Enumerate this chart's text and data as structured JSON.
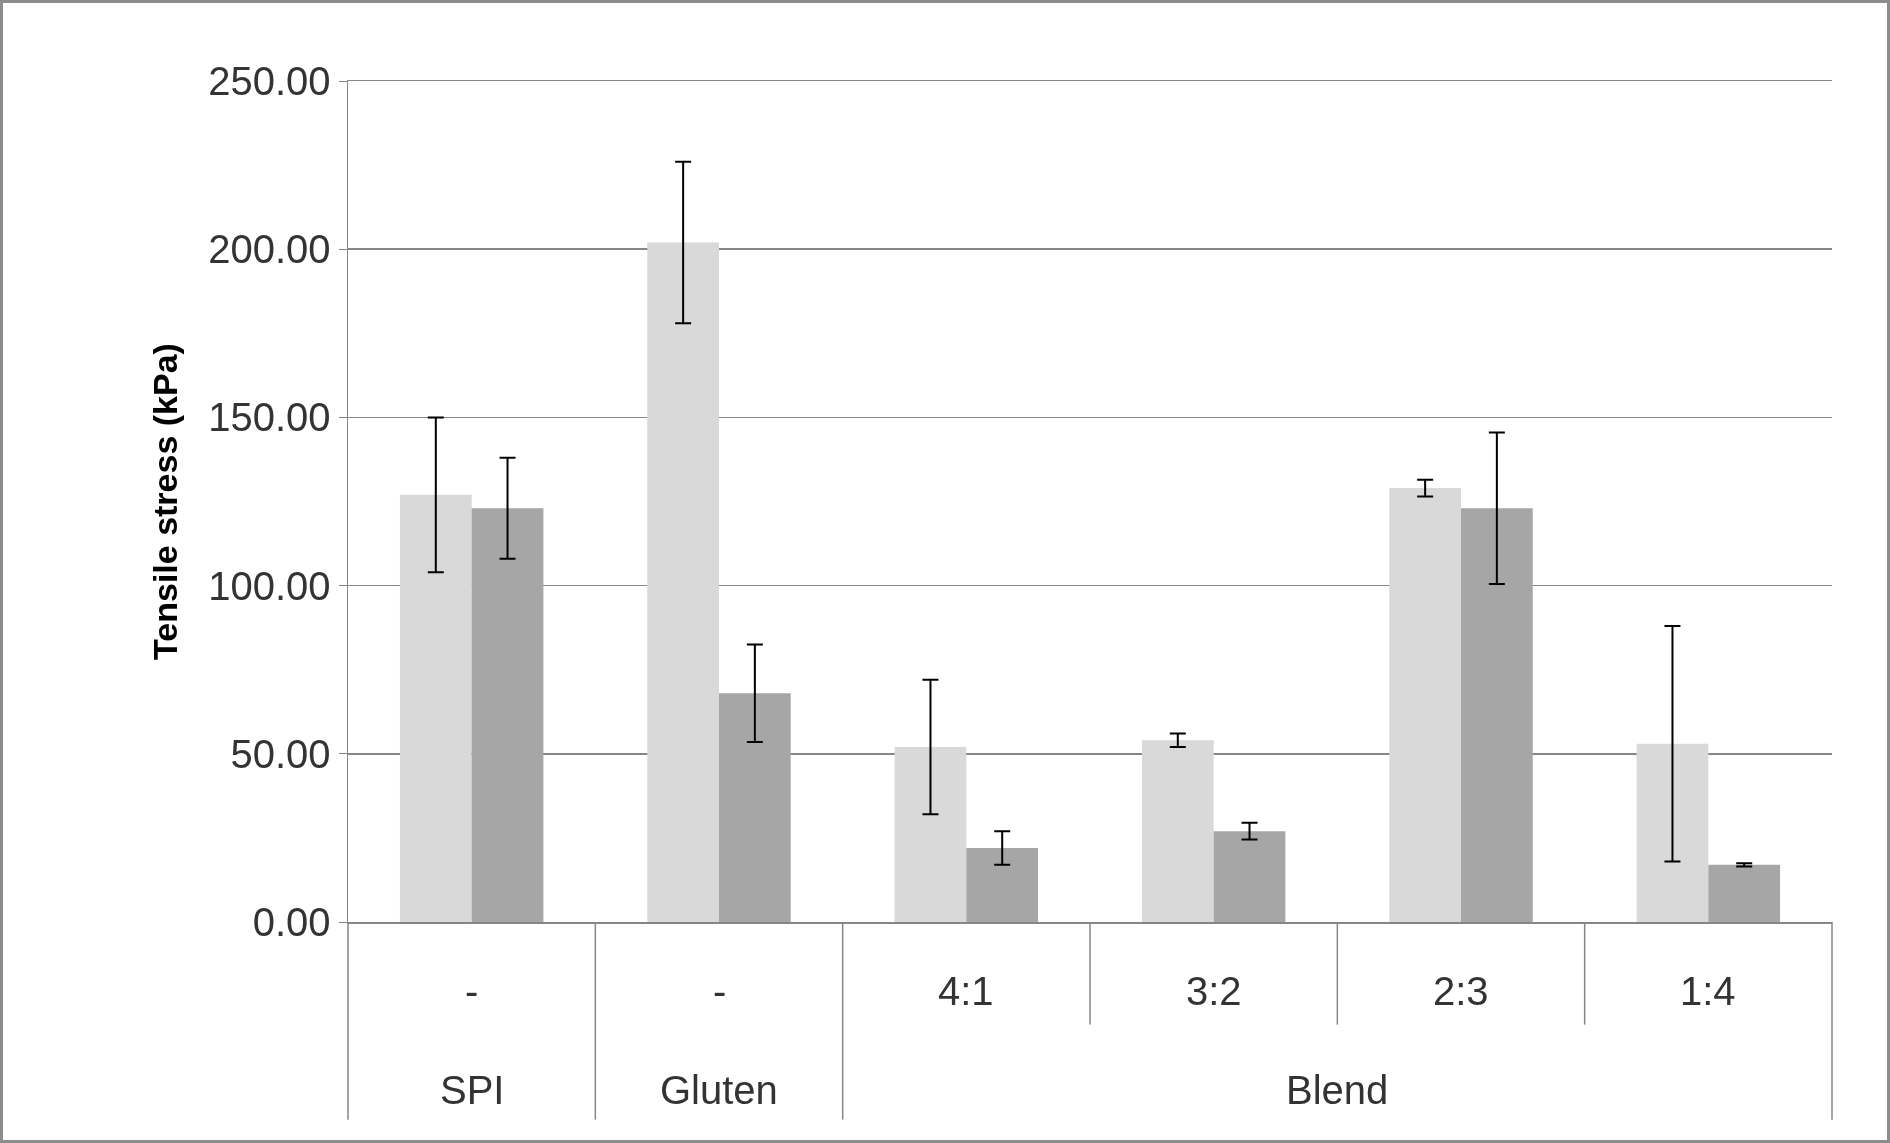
{
  "chart_data": {
    "type": "bar",
    "ylabel": "Tensile stress (kPa)",
    "categories": [
      "-",
      "-",
      "4:1",
      "3:2",
      "2:3",
      "1:4"
    ],
    "series": [
      {
        "color": "#d9d9d9",
        "values": [
          127,
          202,
          52,
          54,
          129,
          53
        ],
        "errors": [
          23,
          24,
          20,
          2,
          2.5,
          35
        ]
      },
      {
        "color": "#a6a6a6",
        "values": [
          123,
          68,
          22,
          27,
          123,
          17
        ],
        "errors": [
          15,
          14.5,
          5,
          2.5,
          22.5,
          0.5
        ]
      }
    ],
    "ylim": [
      0,
      250
    ],
    "yticks": [
      {
        "value": 0,
        "label": "0.00"
      },
      {
        "value": 50,
        "label": "50.00"
      },
      {
        "value": 100,
        "label": "100.00"
      },
      {
        "value": 150,
        "label": "150.00"
      },
      {
        "value": 200,
        "label": "200.00"
      },
      {
        "value": 250,
        "label": "250.00"
      }
    ],
    "grid": "y",
    "annotations": [
      "SPI",
      "Gluten",
      "Blend"
    ]
  }
}
